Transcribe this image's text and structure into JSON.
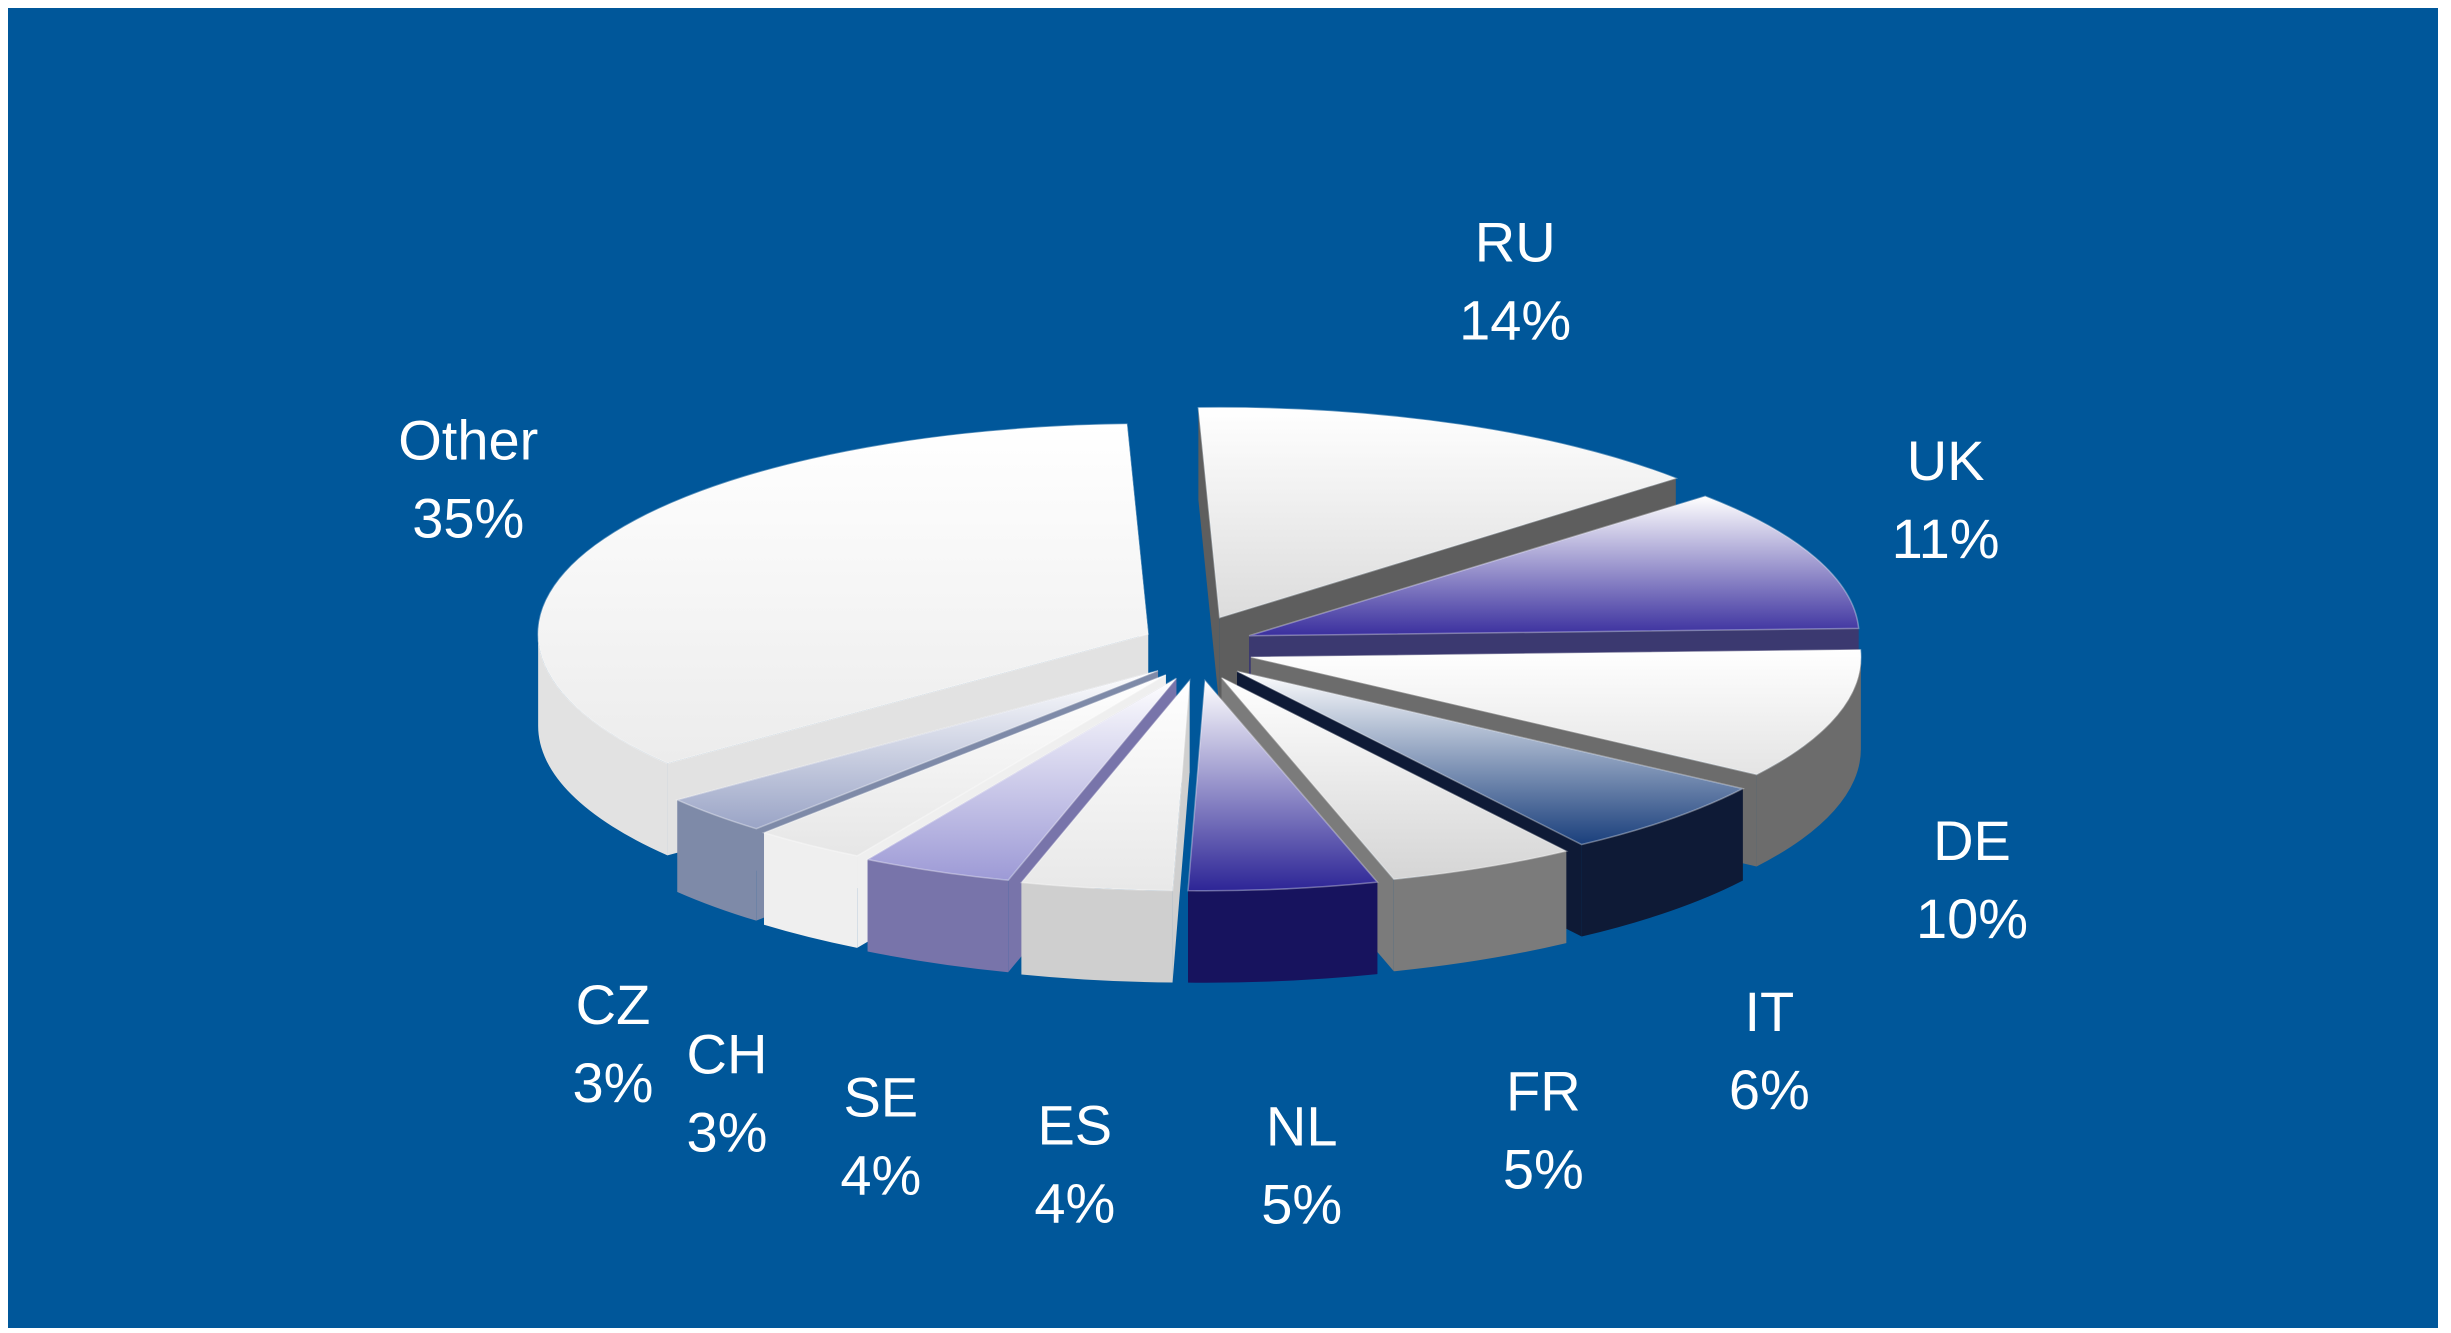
{
  "chart_data": {
    "type": "pie",
    "title": "",
    "exploded": true,
    "three_d": true,
    "background": "#00579a",
    "label_color": "#ffffff",
    "slices": [
      {
        "label": "RU",
        "value": 14,
        "value_label": "14%",
        "color": "#dcdcdc",
        "side": "#5e5e5e"
      },
      {
        "label": "UK",
        "value": 11,
        "value_label": "11%",
        "color": "#3a2f9e",
        "side": "#3b3970"
      },
      {
        "label": "DE",
        "value": 10,
        "value_label": "10%",
        "color": "#e4e4e4",
        "side": "#6c6c6c"
      },
      {
        "label": "IT",
        "value": 6,
        "value_label": "6%",
        "color": "#1a3f7c",
        "side": "#0e1a36"
      },
      {
        "label": "FR",
        "value": 5,
        "value_label": "5%",
        "color": "#d5d5d5",
        "side": "#7b7b7b"
      },
      {
        "label": "NL",
        "value": 5,
        "value_label": "5%",
        "color": "#2d2596",
        "side": "#17135e"
      },
      {
        "label": "ES",
        "value": 4,
        "value_label": "4%",
        "color": "#e8e8e8",
        "side": "#cfcfcf"
      },
      {
        "label": "SE",
        "value": 4,
        "value_label": "4%",
        "color": "#9d9ad6",
        "side": "#7874aa"
      },
      {
        "label": "CH",
        "value": 3,
        "value_label": "3%",
        "color": "#e6e6e6",
        "side": "#efefef"
      },
      {
        "label": "CZ",
        "value": 3,
        "value_label": "3%",
        "color": "#9aa4c6",
        "side": "#7e8aa8"
      },
      {
        "label": "Other",
        "value": 35,
        "value_label": "35%",
        "color": "#ececec",
        "side": "#e2e2e2"
      }
    ]
  }
}
